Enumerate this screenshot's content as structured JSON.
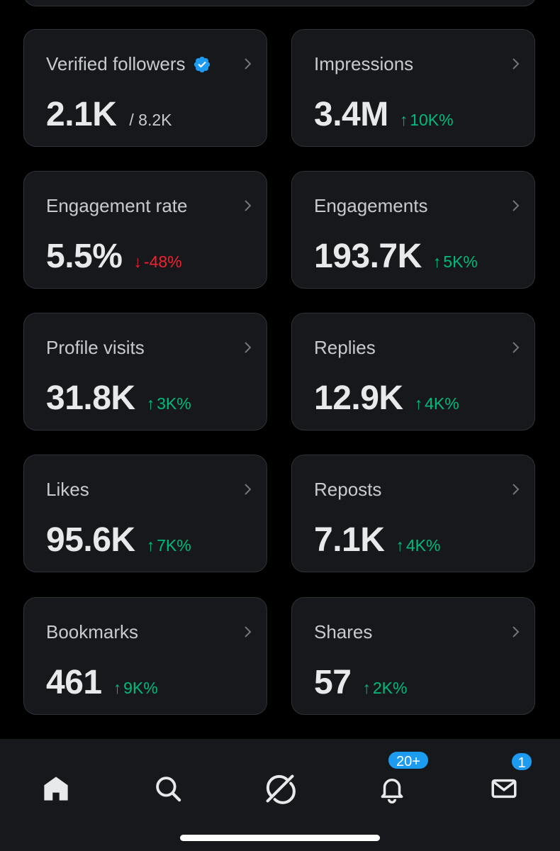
{
  "cards": [
    {
      "title": "Verified followers",
      "verified": true,
      "value": "2.1K",
      "sub": "/ 8.2K"
    },
    {
      "title": "Impressions",
      "value": "3.4M",
      "delta": {
        "dir": "up",
        "arrow": "↑",
        "text": "10K%"
      }
    },
    {
      "title": "Engagement rate",
      "value": "5.5%",
      "delta": {
        "dir": "down",
        "arrow": "↓",
        "text": "-48%"
      }
    },
    {
      "title": "Engagements",
      "value": "193.7K",
      "delta": {
        "dir": "up",
        "arrow": "↑",
        "text": "5K%"
      }
    },
    {
      "title": "Profile visits",
      "value": "31.8K",
      "delta": {
        "dir": "up",
        "arrow": "↑",
        "text": "3K%"
      }
    },
    {
      "title": "Replies",
      "value": "12.9K",
      "delta": {
        "dir": "up",
        "arrow": "↑",
        "text": "4K%"
      }
    },
    {
      "title": "Likes",
      "value": "95.6K",
      "delta": {
        "dir": "up",
        "arrow": "↑",
        "text": "7K%"
      }
    },
    {
      "title": "Reposts",
      "value": "7.1K",
      "delta": {
        "dir": "up",
        "arrow": "↑",
        "text": "4K%"
      }
    },
    {
      "title": "Bookmarks",
      "value": "461",
      "delta": {
        "dir": "up",
        "arrow": "↑",
        "text": "9K%"
      }
    },
    {
      "title": "Shares",
      "value": "57",
      "delta": {
        "dir": "up",
        "arrow": "↑",
        "text": "2K%"
      }
    }
  ],
  "nav": {
    "items": [
      "home-icon",
      "search-icon",
      "grok-icon",
      "bell-icon",
      "mail-icon"
    ],
    "notifications_badge": "20+",
    "messages_badge": "1"
  },
  "colors": {
    "up": "#00ba7c",
    "down": "#f4212e",
    "accent": "#1d9bf0"
  }
}
